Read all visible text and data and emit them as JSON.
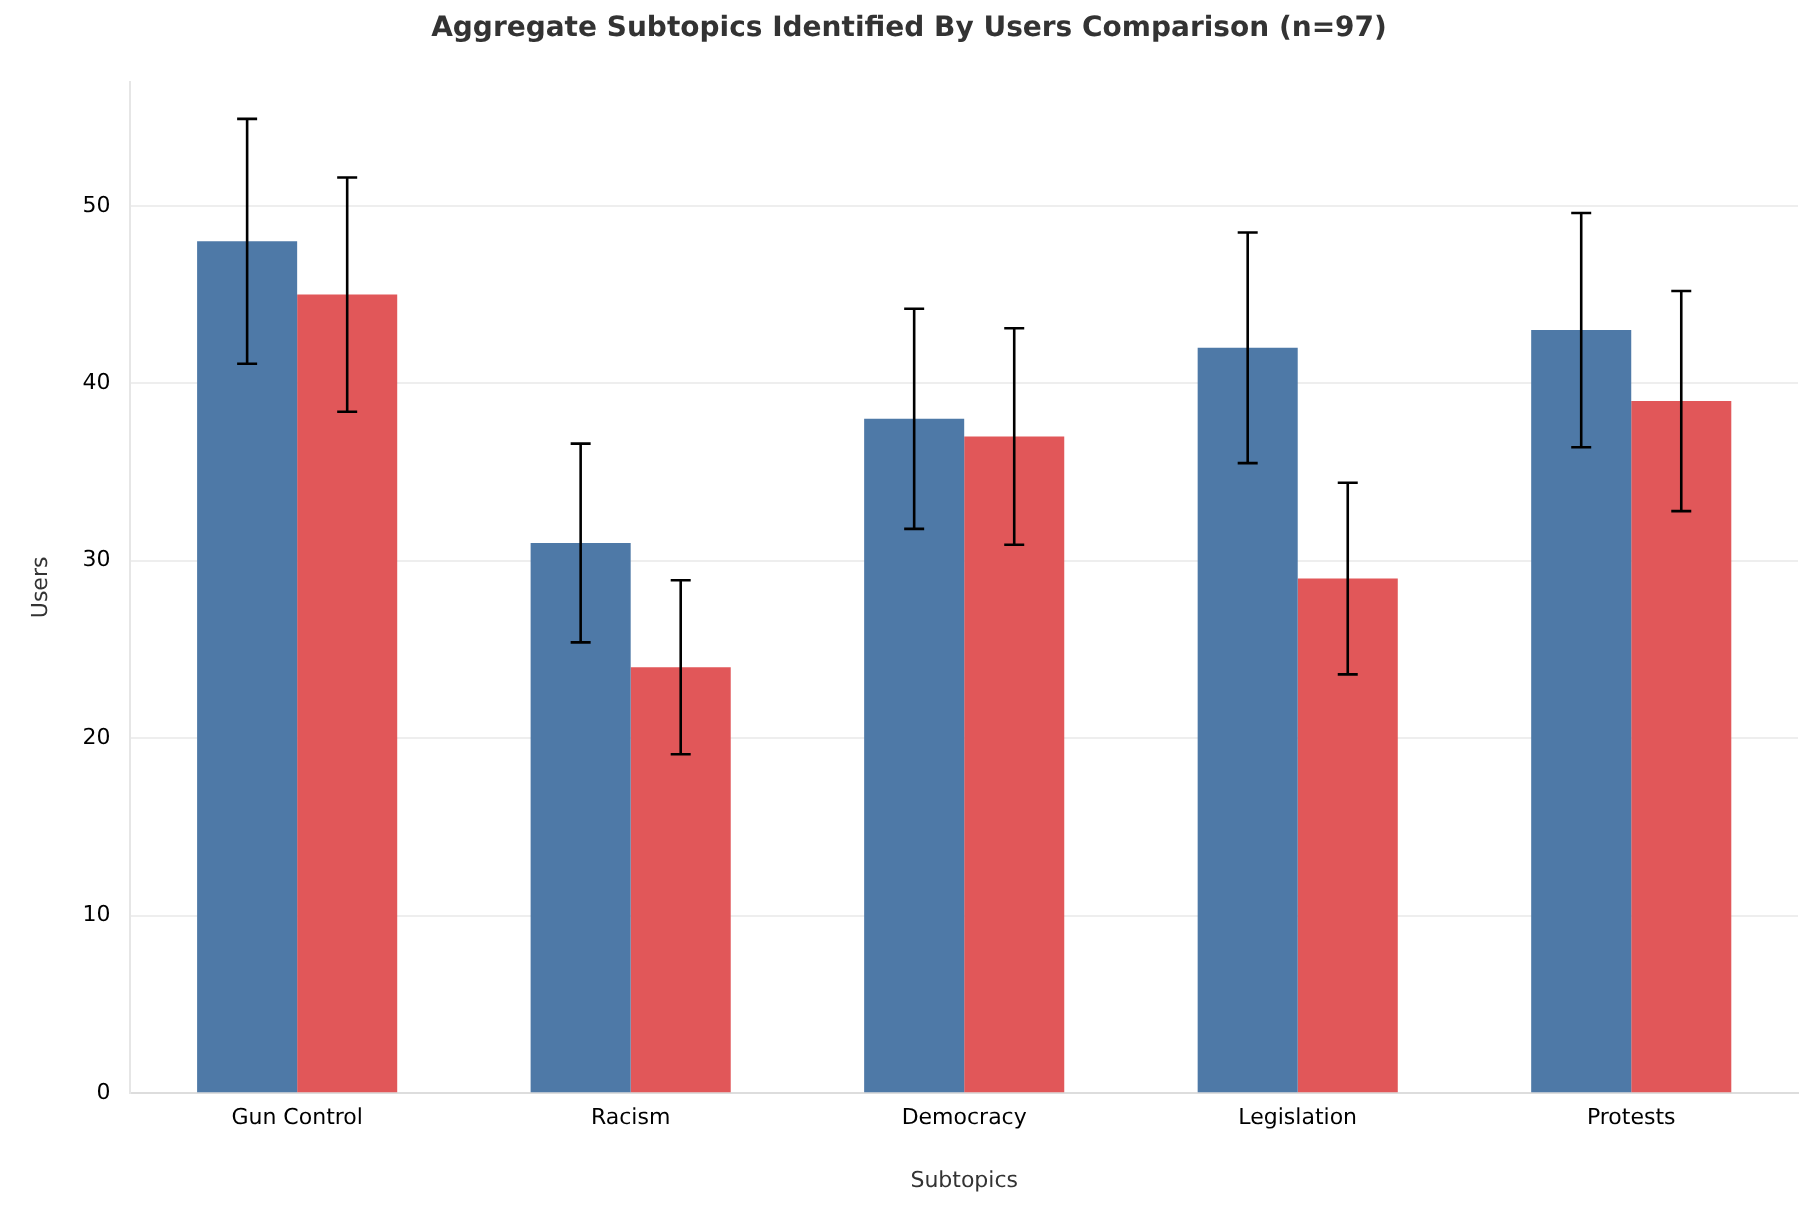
{
  "chart_data": {
    "type": "bar",
    "title": "Aggregate Subtopics Identified By Users Comparison (n=97)",
    "xlabel": "Subtopics",
    "ylabel": "Users",
    "categories": [
      "Gun Control",
      "Racism",
      "Democracy",
      "Legislation",
      "Protests"
    ],
    "series": [
      {
        "color": "#4e79a7",
        "values": [
          48,
          31,
          38,
          42,
          43
        ],
        "errors": [
          6.9,
          5.6,
          6.2,
          6.5,
          6.6
        ]
      },
      {
        "color": "#e15759",
        "values": [
          45,
          24,
          37,
          29,
          39
        ],
        "errors": [
          6.6,
          4.9,
          6.1,
          5.4,
          6.2
        ]
      }
    ],
    "ylim": [
      0,
      57
    ],
    "yticks": [
      0,
      10,
      20,
      30,
      40,
      50
    ],
    "grid": "y",
    "legend": false
  }
}
